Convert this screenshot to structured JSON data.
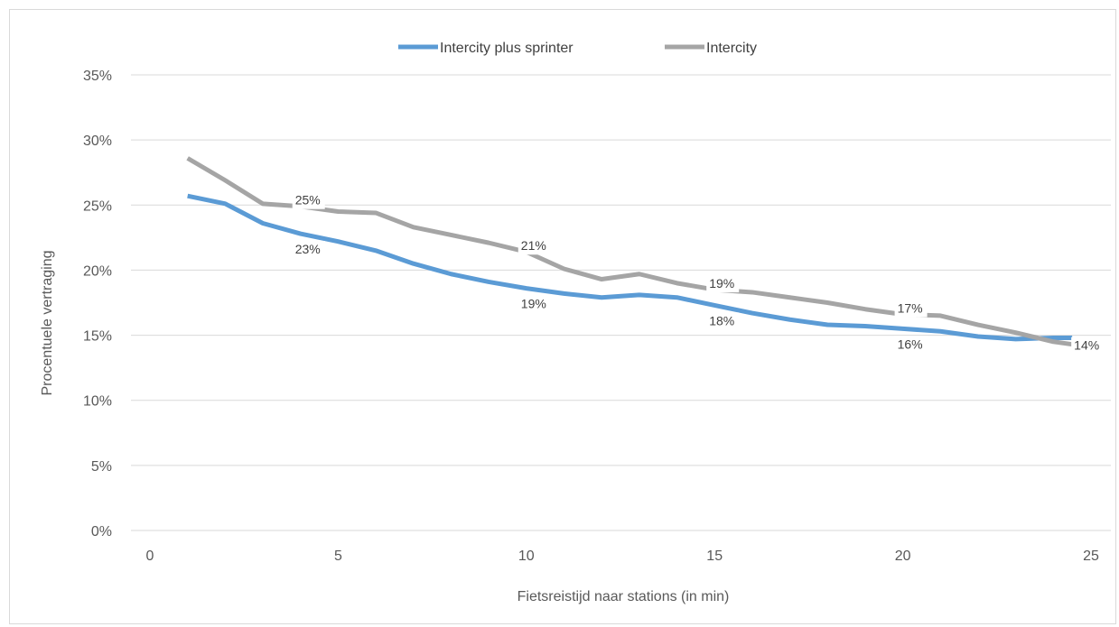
{
  "chart_data": {
    "type": "line",
    "xlabel": "Fietsreistijd naar stations (in min)",
    "ylabel": "Procentuele vertraging",
    "xlim": [
      0,
      25
    ],
    "ylim": [
      0,
      0.35
    ],
    "x_ticks": [
      "0",
      "5",
      "10",
      "15",
      "20",
      "25"
    ],
    "y_ticks": [
      "0%",
      "5%",
      "10%",
      "15%",
      "20%",
      "25%",
      "30%",
      "35%"
    ],
    "grid": "horizontal",
    "legend_position": "top",
    "series": [
      {
        "name": "Intercity plus sprinter",
        "color": "#5b9bd5",
        "x": [
          1,
          2,
          3,
          4,
          5,
          6,
          7,
          8,
          9,
          10,
          11,
          12,
          13,
          14,
          15,
          16,
          17,
          18,
          19,
          20,
          21,
          22,
          23,
          24,
          24.5
        ],
        "y": [
          0.257,
          0.251,
          0.236,
          0.228,
          0.222,
          0.215,
          0.205,
          0.197,
          0.191,
          0.186,
          0.182,
          0.179,
          0.181,
          0.179,
          0.173,
          0.167,
          0.162,
          0.158,
          0.157,
          0.155,
          0.153,
          0.149,
          0.147,
          0.148,
          0.148
        ],
        "labels": [
          {
            "x": 4,
            "y": 0.228,
            "text": "23%"
          },
          {
            "x": 10,
            "y": 0.186,
            "text": "19%"
          },
          {
            "x": 15,
            "y": 0.173,
            "text": "18%"
          },
          {
            "x": 20,
            "y": 0.155,
            "text": "16%"
          }
        ]
      },
      {
        "name": "Intercity",
        "color": "#a5a5a5",
        "x": [
          1,
          2,
          3,
          4,
          5,
          6,
          7,
          8,
          9,
          10,
          11,
          12,
          13,
          14,
          15,
          16,
          17,
          18,
          19,
          20,
          21,
          22,
          23,
          24,
          24.5
        ],
        "y": [
          0.286,
          0.269,
          0.251,
          0.249,
          0.245,
          0.244,
          0.233,
          0.227,
          0.221,
          0.214,
          0.201,
          0.193,
          0.197,
          0.19,
          0.185,
          0.183,
          0.179,
          0.175,
          0.17,
          0.166,
          0.165,
          0.158,
          0.152,
          0.145,
          0.143
        ],
        "labels": [
          {
            "x": 4,
            "y": 0.249,
            "text": "25%"
          },
          {
            "x": 10,
            "y": 0.214,
            "text": "21%"
          },
          {
            "x": 15,
            "y": 0.185,
            "text": "19%"
          },
          {
            "x": 20,
            "y": 0.166,
            "text": "17%"
          },
          {
            "x": 24.5,
            "y": 0.143,
            "text": "14%"
          }
        ]
      }
    ]
  }
}
